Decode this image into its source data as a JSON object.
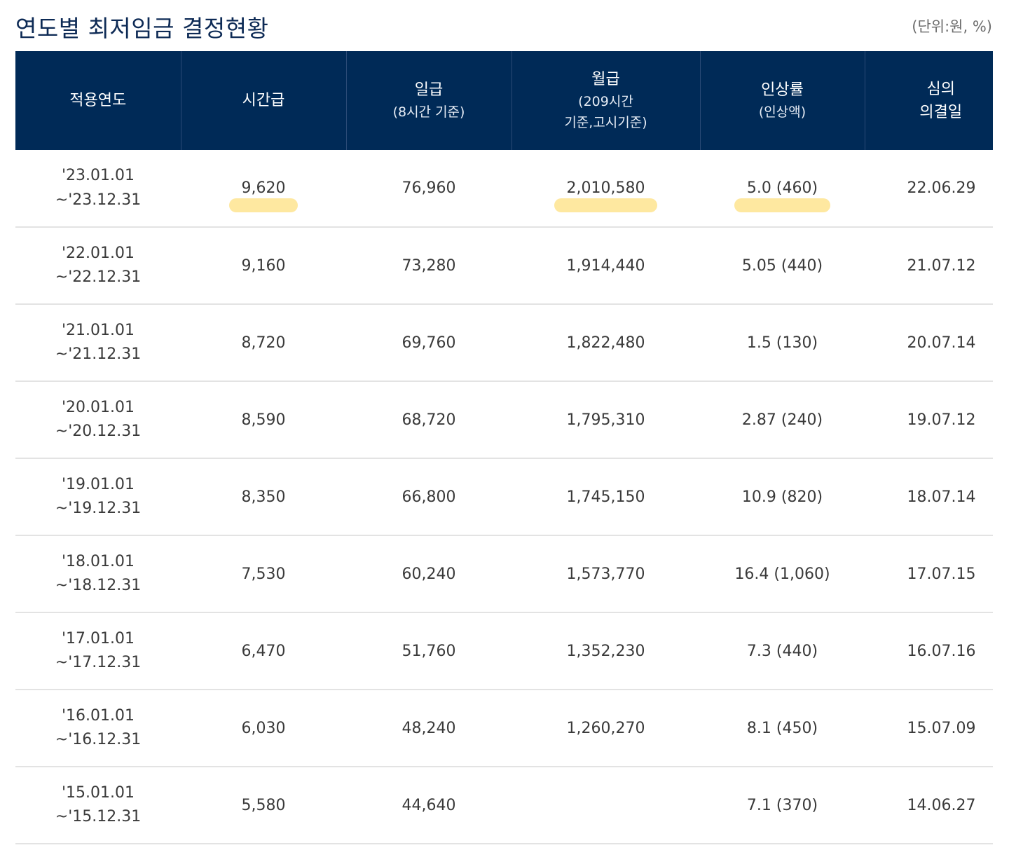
{
  "page": {
    "title": "연도별 최저임금 결정현황",
    "unit": "(단위:원, %)"
  },
  "table": {
    "headers": {
      "period": "적용연도",
      "hourly": "시간급",
      "daily_main": "일급",
      "daily_sub": "(8시간 기준)",
      "monthly_main": "월급",
      "monthly_sub1": "(209시간",
      "monthly_sub2": "기준,고시기준)",
      "rate_main": "인상률",
      "rate_sub": "(인상액)",
      "decided_line1": "심의",
      "decided_line2": "의결일"
    },
    "rows": [
      {
        "period_start": "'23.01.01",
        "period_end": "~'23.12.31",
        "hourly": "9,620",
        "daily": "76,960",
        "monthly": "2,010,580",
        "rate": "5.0 (460)",
        "decided": "22.06.29"
      },
      {
        "period_start": "'22.01.01",
        "period_end": "~'22.12.31",
        "hourly": "9,160",
        "daily": "73,280",
        "monthly": "1,914,440",
        "rate": "5.05 (440)",
        "decided": "21.07.12"
      },
      {
        "period_start": "'21.01.01",
        "period_end": "~'21.12.31",
        "hourly": "8,720",
        "daily": "69,760",
        "monthly": "1,822,480",
        "rate": "1.5 (130)",
        "decided": "20.07.14"
      },
      {
        "period_start": "'20.01.01",
        "period_end": "~'20.12.31",
        "hourly": "8,590",
        "daily": "68,720",
        "monthly": "1,795,310",
        "rate": "2.87 (240)",
        "decided": "19.07.12"
      },
      {
        "period_start": "'19.01.01",
        "period_end": "~'19.12.31",
        "hourly": "8,350",
        "daily": "66,800",
        "monthly": "1,745,150",
        "rate": "10.9 (820)",
        "decided": "18.07.14"
      },
      {
        "period_start": "'18.01.01",
        "period_end": "~'18.12.31",
        "hourly": "7,530",
        "daily": "60,240",
        "monthly": "1,573,770",
        "rate": "16.4 (1,060)",
        "decided": "17.07.15"
      },
      {
        "period_start": "'17.01.01",
        "period_end": "~'17.12.31",
        "hourly": "6,470",
        "daily": "51,760",
        "monthly": "1,352,230",
        "rate": "7.3 (440)",
        "decided": "16.07.16"
      },
      {
        "period_start": "'16.01.01",
        "period_end": "~'16.12.31",
        "hourly": "6,030",
        "daily": "48,240",
        "monthly": "1,260,270",
        "rate": "8.1 (450)",
        "decided": "15.07.09"
      },
      {
        "period_start": "'15.01.01",
        "period_end": "~'15.12.31",
        "hourly": "5,580",
        "daily": "44,640",
        "monthly": "",
        "rate": "7.1 (370)",
        "decided": "14.06.27"
      }
    ]
  },
  "highlight_color": "#fdd960"
}
